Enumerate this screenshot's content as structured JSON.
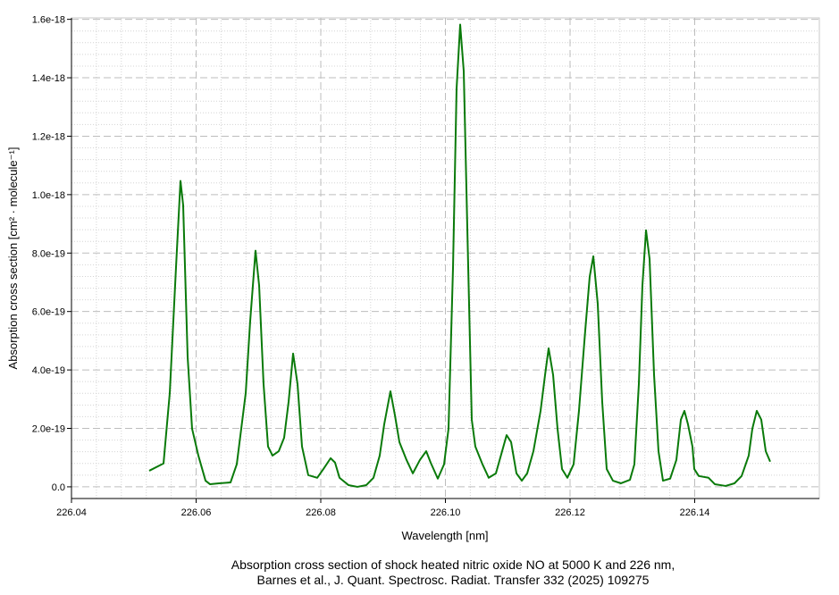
{
  "chart_data": {
    "type": "line",
    "x_label": "Wavelength [nm]",
    "y_label": "Absorption cross section [cm² · molecule⁻¹]",
    "caption": [
      "Absorption cross section of shock heated nitric oxide NO at 5000 K and 226 nm,",
      "Barnes et al., J. Quant. Spectrosc. Radiat. Transfer 332 (2025) 109275"
    ],
    "xlim": [
      226.04,
      226.16
    ],
    "ylim": [
      -4e-20,
      1.605e-18
    ],
    "xticks": [
      226.04,
      226.06,
      226.08,
      {
        "value": 226.1,
        "label": "226.10"
      },
      226.12,
      226.14
    ],
    "yticks": [
      {
        "value": 0,
        "label": "0.0"
      },
      {
        "value": 2e-19,
        "label": "2.0e-19"
      },
      {
        "value": 4e-19,
        "label": "4.0e-19"
      },
      {
        "value": 6e-19,
        "label": "6.0e-19"
      },
      {
        "value": 8e-19,
        "label": "8.0e-19"
      },
      {
        "value": 1e-18,
        "label": "1.0e-18"
      },
      {
        "value": 1.2e-18,
        "label": "1.2e-18"
      },
      {
        "value": 1.4e-18,
        "label": "1.4e-18"
      },
      {
        "value": 1.6e-18,
        "label": "1.6e-18"
      }
    ],
    "grid": true,
    "minor_grid": true,
    "x": [
      226.05247,
      226.05477,
      226.05577,
      226.05677,
      226.05749,
      226.05792,
      226.05864,
      226.05935,
      226.06036,
      226.06151,
      226.06222,
      226.06366,
      226.06552,
      226.06652,
      226.06724,
      226.06796,
      226.06867,
      226.06953,
      226.07011,
      226.07082,
      226.07154,
      226.07226,
      226.07326,
      226.07412,
      226.07484,
      226.07556,
      226.07627,
      226.07699,
      226.07799,
      226.07943,
      226.08043,
      226.08158,
      226.08229,
      226.08301,
      226.08444,
      226.08588,
      226.08731,
      226.08846,
      226.08946,
      226.09018,
      226.09118,
      226.0919,
      226.09262,
      226.09376,
      226.09477,
      226.09591,
      226.09692,
      226.09763,
      226.09878,
      226.09978,
      226.1005,
      226.10122,
      226.10179,
      226.10237,
      226.10294,
      226.10366,
      226.10423,
      226.1048,
      226.10595,
      226.10695,
      226.1081,
      226.1091,
      226.10982,
      226.11054,
      226.1114,
      226.11226,
      226.11312,
      226.11412,
      226.11527,
      226.11599,
      226.11656,
      226.11728,
      226.11799,
      226.11871,
      226.11957,
      226.12057,
      226.12143,
      226.12244,
      226.12315,
      226.12373,
      226.12444,
      226.12516,
      226.12588,
      226.12688,
      226.12817,
      226.12961,
      226.13032,
      226.13104,
      226.13161,
      226.13219,
      226.13276,
      226.13348,
      226.13419,
      226.13491,
      226.13606,
      226.13706,
      226.13778,
      226.13835,
      226.13892,
      226.13964,
      226.13993,
      226.14065,
      226.14222,
      226.14323,
      226.14495,
      226.14638,
      226.14753,
      226.14867,
      226.14925,
      226.14996,
      226.15068,
      226.1514,
      226.15211
    ],
    "series": [
      {
        "color": "#0a7a0a",
        "values": [
          5.5e-20,
          8e-20,
          3.21e-19,
          7.5e-19,
          1.047e-18,
          9.64e-19,
          4.44e-19,
          1.99e-19,
          1.07e-19,
          2.1e-20,
          9e-21,
          1.2e-20,
          1.5e-20,
          7.7e-20,
          1.99e-19,
          3.21e-19,
          5.66e-19,
          8.08e-19,
          6.89e-19,
          3.52e-19,
          1.38e-19,
          1.07e-19,
          1.22e-19,
          1.68e-19,
          2.91e-19,
          4.56e-19,
          3.52e-19,
          1.38e-19,
          4e-20,
          3.1e-20,
          6.1e-20,
          9.8e-20,
          8.3e-20,
          3.1e-20,
          6e-21,
          0,
          6e-21,
          3.1e-20,
          1.07e-19,
          2.14e-19,
          3.27e-19,
          2.45e-19,
          1.53e-19,
          9.2e-20,
          4.6e-20,
          9.2e-20,
          1.22e-19,
          8.3e-20,
          2.8e-20,
          7.7e-20,
          1.99e-19,
          7.5e-19,
          1.362e-18,
          1.582e-18,
          1.423e-18,
          7.5e-19,
          2.3e-19,
          1.38e-19,
          7.7e-20,
          3.1e-20,
          4.6e-20,
          1.22e-19,
          1.77e-19,
          1.53e-19,
          4.6e-20,
          2.1e-20,
          4.6e-20,
          1.22e-19,
          2.6e-19,
          3.83e-19,
          4.74e-19,
          3.83e-19,
          1.99e-19,
          6.1e-20,
          3.1e-20,
          7.7e-20,
          2.6e-19,
          5.36e-19,
          7.19e-19,
          7.89e-19,
          6.27e-19,
          2.91e-19,
          6.1e-20,
          2.1e-20,
          1.2e-20,
          2.4e-20,
          7.7e-20,
          3.52e-19,
          6.89e-19,
          8.78e-19,
          7.8e-19,
          3.83e-19,
          1.22e-19,
          2.1e-20,
          2.8e-20,
          9.2e-20,
          2.3e-19,
          2.6e-19,
          2.14e-19,
          1.38e-19,
          6.1e-20,
          3.7e-20,
          3.1e-20,
          9e-21,
          3e-21,
          1.2e-20,
          3.7e-20,
          1.07e-19,
          1.99e-19,
          2.6e-19,
          2.3e-19,
          1.22e-19,
          8.6e-20
        ]
      }
    ]
  }
}
